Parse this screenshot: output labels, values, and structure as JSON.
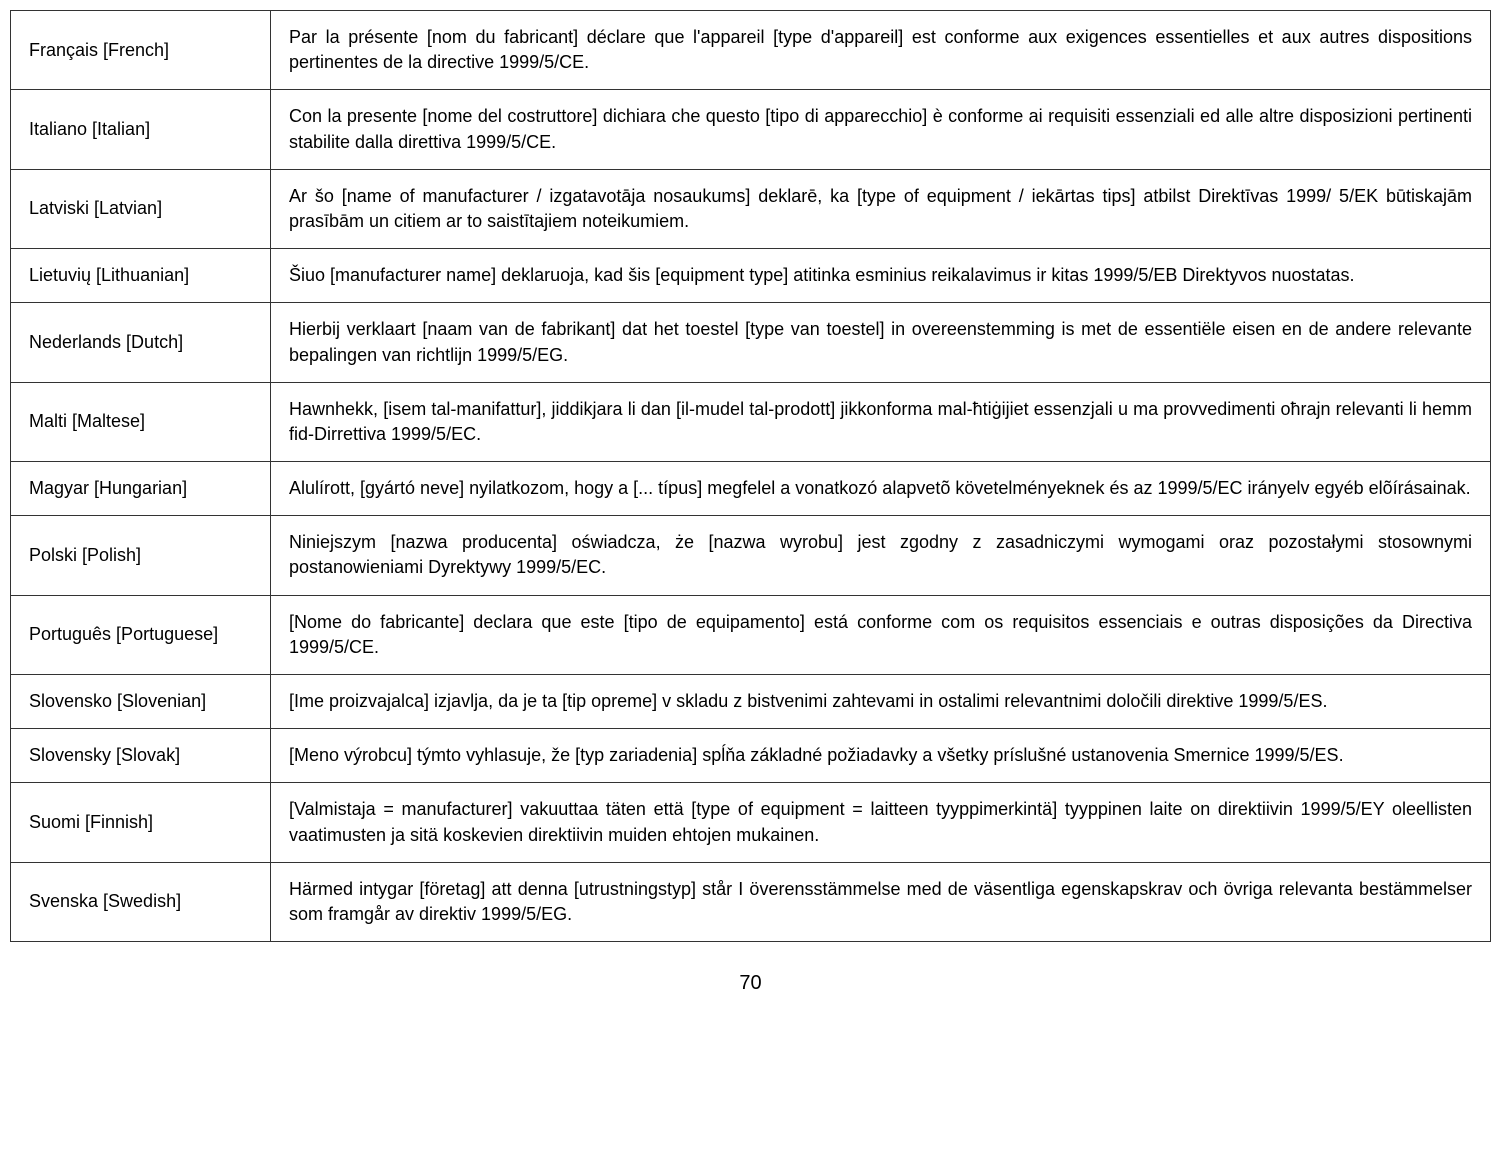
{
  "rows": [
    {
      "language": "Français [French]",
      "text": "Par la présente [nom du fabricant] déclare que l'appareil [type d'appareil] est conforme aux exigences essentielles et aux autres dispositions pertinentes de la directive 1999/5/CE."
    },
    {
      "language": "Italiano [Italian]",
      "text": "Con la presente [nome del costruttore] dichiara che questo [tipo di apparecchio] è conforme ai requisiti essenziali ed alle altre disposizioni pertinenti stabilite dalla direttiva 1999/5/CE."
    },
    {
      "language": "Latviski [Latvian]",
      "text": "Ar šo [name of manufacturer / izgatavotāja nosaukums] deklarē, ka [type of equipment / iekārtas tips] atbilst Direktīvas 1999/ 5/EK būtiskajām prasībām un citiem ar to saistītajiem noteikumiem."
    },
    {
      "language": "Lietuvių [Lithuanian]",
      "text": "Šiuo [manufacturer name] deklaruoja, kad šis [equipment type] atitinka esminius reikalavimus ir kitas 1999/5/EB Direktyvos nuostatas."
    },
    {
      "language": "Nederlands [Dutch]",
      "text": "Hierbij verklaart [naam van de fabrikant] dat het toestel [type van toestel] in overeenstemming is met de essentiële eisen en de andere relevante bepalingen van richtlijn 1999/5/EG."
    },
    {
      "language": "Malti [Maltese]",
      "text": "Hawnhekk, [isem tal-manifattur], jiddikjara li dan [il-mudel tal-prodott] jikkonforma mal-ħtiġijiet essenzjali u ma provvedimenti oħrajn relevanti li hemm fid-Dirrettiva 1999/5/EC."
    },
    {
      "language": "Magyar [Hungarian]",
      "text": "Alulírott, [gyártó neve] nyilatkozom, hogy a [... típus] megfelel a vonatkozó alapvetõ követelményeknek és az 1999/5/EC irányelv egyéb elõírásainak."
    },
    {
      "language": "Polski [Polish]",
      "text": "Niniejszym [nazwa producenta] oświadcza, że [nazwa wyrobu] jest zgodny z zasadniczymi wymogami oraz pozostałymi stosownymi postanowieniami Dyrektywy 1999/5/EC."
    },
    {
      "language": "Português [Portuguese]",
      "text": "[Nome do fabricante] declara que este [tipo de equipamento] está conforme com os requisitos essenciais e outras disposições da Directiva 1999/5/CE."
    },
    {
      "language": "Slovensko [Slovenian]",
      "text": " [Ime proizvajalca] izjavlja, da je ta [tip opreme] v skladu z bistvenimi zahtevami in ostalimi relevantnimi določili direktive 1999/5/ES."
    },
    {
      "language": "Slovensky [Slovak]",
      "text": "[Meno výrobcu] týmto vyhlasuje, že [typ zariadenia] spĺňa základné požiadavky a všetky príslušné ustanovenia Smernice 1999/5/ES."
    },
    {
      "language": "Suomi [Finnish]",
      "text": "[Valmistaja = manufacturer] vakuuttaa täten että [type of equipment = laitteen tyyppimerkintä] tyyppinen laite on direktiivin 1999/5/EY oleellisten vaatimusten ja sitä koskevien direktiivin muiden ehtojen mukainen."
    },
    {
      "language": "Svenska [Swedish]",
      "text": "Härmed intygar [företag] att denna [utrustningstyp] står I överensstämmelse med de väsentliga egenskapskrav och övriga relevanta bestämmelser som framgår av direktiv 1999/5/EG."
    }
  ],
  "pageNumber": "70",
  "styling": {
    "fontFamily": "Segoe UI, Helvetica Neue, Arial, sans-serif",
    "backgroundColor": "#ffffff",
    "textColor": "#000000",
    "borderColor": "#333333",
    "cellFontSize": 18,
    "langColWidth": 260,
    "cellPaddingV": 14,
    "cellPaddingH": 18,
    "pageNumberFontSize": 20,
    "textAlign": "justify"
  }
}
